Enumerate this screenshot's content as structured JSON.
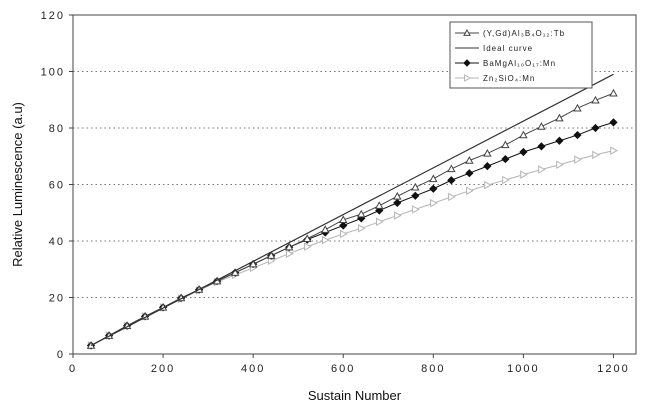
{
  "chart_data": {
    "type": "line",
    "xlabel": "Sustain Number",
    "ylabel": "Relative Luminescence (a.u)",
    "xlim": [
      0,
      1250
    ],
    "ylim": [
      0,
      120
    ],
    "xticks": [
      0,
      200,
      400,
      600,
      800,
      1000,
      1200
    ],
    "yticks": [
      0,
      20,
      40,
      60,
      80,
      100,
      120
    ],
    "grid": "horizontal dotted",
    "legend_position": "top-right",
    "series": [
      {
        "name": "(Y,Gd)Al₃B₄O₁₂:Tb",
        "legend_label": "(Y,Gd)Al₃B₄O₁₂:Tb",
        "marker": "open-triangle",
        "color": "#444444",
        "x": [
          40,
          80,
          120,
          160,
          200,
          240,
          280,
          320,
          360,
          400,
          440,
          480,
          520,
          560,
          600,
          640,
          680,
          720,
          760,
          800,
          840,
          880,
          920,
          960,
          1000,
          1040,
          1080,
          1120,
          1160,
          1200
        ],
        "y": [
          3,
          6.5,
          10,
          13.3,
          16.5,
          19.8,
          22.8,
          25.8,
          28.8,
          31.8,
          34.8,
          37.8,
          40.8,
          44,
          47.5,
          49.5,
          52.5,
          55.8,
          59,
          62,
          65.5,
          68.5,
          71,
          74,
          77.5,
          80.5,
          83.5,
          87,
          89.8,
          92.3
        ]
      },
      {
        "name": "Ideal curve",
        "legend_label": "Ideal curve",
        "marker": "none",
        "color": "#333333",
        "x": [
          40,
          1200
        ],
        "y": [
          3,
          99
        ]
      },
      {
        "name": "BaMgAl₁₀O₁₇:Mn",
        "legend_label": "BaMgAl₁₀O₁₇:Mn",
        "marker": "filled-diamond",
        "color": "#111111",
        "x": [
          40,
          80,
          120,
          160,
          200,
          240,
          280,
          320,
          360,
          400,
          440,
          480,
          520,
          560,
          600,
          640,
          680,
          720,
          760,
          800,
          840,
          880,
          920,
          960,
          1000,
          1040,
          1080,
          1120,
          1160,
          1200
        ],
        "y": [
          3,
          6.5,
          10,
          13.3,
          16.5,
          19.8,
          22.8,
          25.8,
          28.8,
          31.8,
          34.8,
          37.8,
          40.5,
          43,
          45.5,
          48,
          50.8,
          53.5,
          56,
          58.5,
          61.5,
          64,
          66.5,
          69,
          71.5,
          73.5,
          75.5,
          77.5,
          80,
          82
        ]
      },
      {
        "name": "Zn₂SiO₄:Mn",
        "legend_label": "Zn₂SiO₄:Mn",
        "marker": "open-triangle-right",
        "color": "#b5b5b5",
        "x": [
          40,
          80,
          120,
          160,
          200,
          240,
          280,
          320,
          360,
          400,
          440,
          480,
          520,
          560,
          600,
          640,
          680,
          720,
          760,
          800,
          840,
          880,
          920,
          960,
          1000,
          1040,
          1080,
          1120,
          1160,
          1200
        ],
        "y": [
          3,
          6.5,
          10,
          13.3,
          16.5,
          19.5,
          22.5,
          25.5,
          28,
          30.5,
          33,
          35.5,
          38,
          40.3,
          42.5,
          44.5,
          46.8,
          49,
          51.2,
          53.4,
          55.6,
          57.8,
          59.8,
          61.6,
          63.5,
          65.3,
          67,
          68.8,
          70.5,
          72
        ]
      }
    ]
  }
}
